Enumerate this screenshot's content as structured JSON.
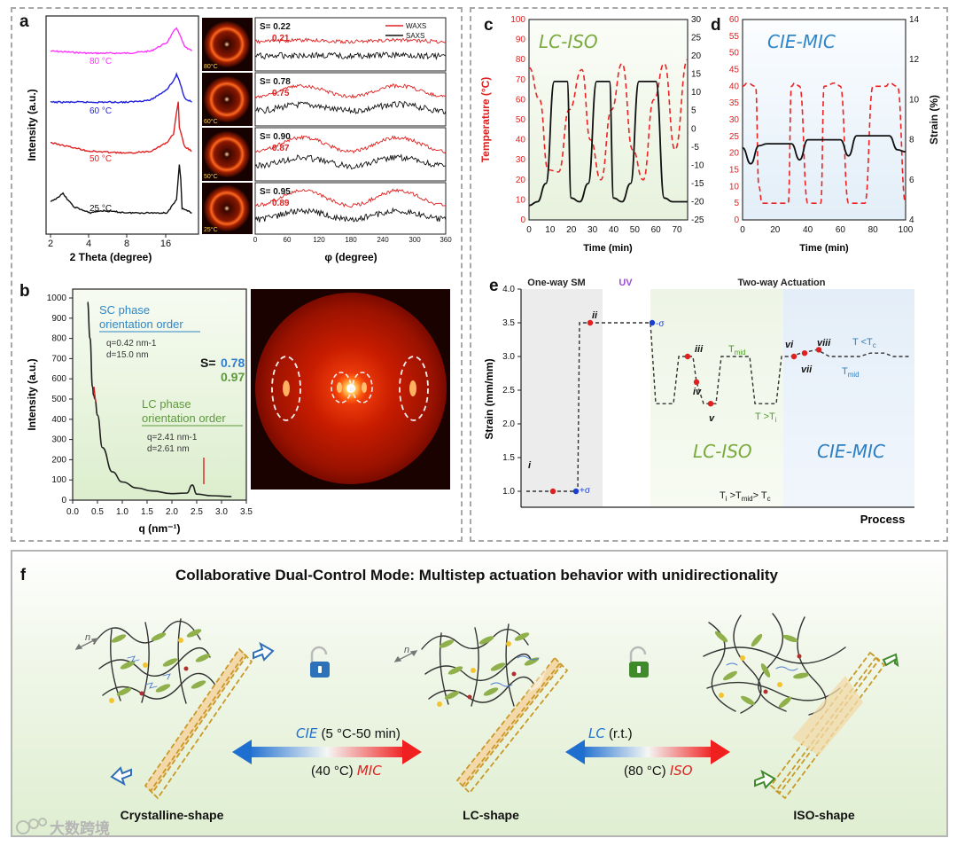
{
  "panel_a": {
    "letter": "a",
    "ylabel": "Intensity (a.u.)",
    "xlabel": "2 Theta (degree)",
    "xticks": [
      "2",
      "4",
      "8",
      "16"
    ],
    "curves": [
      {
        "label": "80 °C",
        "color": "#ff33ff"
      },
      {
        "label": "60 °C",
        "color": "#1f1fdd"
      },
      {
        "label": "50 °C",
        "color": "#e02020"
      },
      {
        "label": "25 °C",
        "color": "#111111"
      }
    ],
    "pattern_labels": [
      "80°C",
      "60°C",
      "50°C",
      "25°C"
    ],
    "legend": [
      "WAXS",
      "SAXS"
    ],
    "s_values": [
      {
        "black": "S= 0.22",
        "red": "0.21"
      },
      {
        "black": "S= 0.78",
        "red": "0.75"
      },
      {
        "black": "S= 0.90",
        "red": "0.87"
      },
      {
        "black": "S= 0.95",
        "red": "0.89"
      }
    ],
    "phi_label": "φ (degree)",
    "phi_ticks": [
      "0",
      "60",
      "120",
      "180",
      "240",
      "300",
      "360"
    ]
  },
  "panel_b": {
    "letter": "b",
    "ylabel": "Intensity (a.u.)",
    "xlabel": "q (nm⁻¹)",
    "sc_title_1": "SC phase",
    "sc_title_2": "orientation order",
    "sc_q": "q=0.42 nm-1",
    "sc_d": "d=15.0 nm",
    "s_label": "S=",
    "s_sc": "0.78",
    "s_lc": "0.97",
    "lc_title_1": "LC phase",
    "lc_title_2": "orientation order",
    "lc_q": "q=2.41 nm-1",
    "lc_d": "d=2.61 nm"
  },
  "panel_c": {
    "letter": "c",
    "mode": "LC-ISO",
    "ylabel_left": "Temperature (°C)",
    "xlabel": "Time (min)"
  },
  "panel_d": {
    "letter": "d",
    "mode": "CIE-MIC",
    "ylabel_right": "Strain (%)",
    "xlabel": "Time (min)"
  },
  "panel_e": {
    "letter": "e",
    "ylabel": "Strain (mm/mm)",
    "xlabel": "Process",
    "seg_oneway": "One-way SM",
    "seg_uv": "UV",
    "seg_twoway": "Two-way Actuation",
    "points": [
      "i",
      "ii",
      "iii",
      "iv",
      "v",
      "vi",
      "vii",
      "viii"
    ],
    "plus_sigma": "+σ",
    "minus_sigma": "-σ",
    "t_mid": "T",
    "t_mid_sub": "mid",
    "t_gt_ti": "T >T",
    "t_gt_ti_sub": "i",
    "t_lt_tc": "T <T",
    "t_lt_tc_sub": "c",
    "region_lc": "LC-ISO",
    "region_cie": "CIE-MIC",
    "order_text_1": "T",
    "order_text_2": "i",
    "order_text_3": " >T",
    "order_text_4": "mid",
    "order_text_5": "> T",
    "order_text_6": "c"
  },
  "panel_f": {
    "letter": "f",
    "title": "Collaborative Dual-Control Mode: Multistep actuation behavior with unidirectionality",
    "arrow1_top_italic": "CIE",
    "arrow1_top": " (5 °C-50 min)",
    "arrow1_bottom": "(40 °C) ",
    "arrow1_bottom_italic": "MIC",
    "arrow2_top_italic": "LC",
    "arrow2_top": " (r.t.)",
    "arrow2_bottom": "(80 °C) ",
    "arrow2_bottom_italic": "ISO",
    "shape1": "Crystalline-shape",
    "shape2": "LC-shape",
    "shape3": "ISO-shape",
    "n_label": "n",
    "watermark": "大数跨境"
  },
  "chart_data": [
    {
      "type": "line",
      "panel": "a-left",
      "xlabel": "2 Theta (degree)",
      "ylabel": "Intensity (a.u.)",
      "x_scale": "log",
      "xlim": [
        2,
        26
      ],
      "series": [
        {
          "name": "80 °C",
          "x": [
            2,
            4,
            8,
            12,
            16,
            18,
            19,
            20,
            22,
            25
          ],
          "y": [
            0.86,
            0.85,
            0.85,
            0.86,
            0.9,
            0.95,
            0.97,
            0.94,
            0.88,
            0.86
          ]
        },
        {
          "name": "60 °C",
          "x": [
            2,
            4,
            8,
            12,
            16,
            18,
            19,
            20,
            22,
            25
          ],
          "y": [
            0.62,
            0.62,
            0.62,
            0.63,
            0.68,
            0.72,
            0.75,
            0.72,
            0.64,
            0.62
          ]
        },
        {
          "name": "50 °C",
          "x": [
            2,
            4,
            8,
            12,
            16,
            18,
            19,
            19.6,
            20,
            22,
            25
          ],
          "y": [
            0.43,
            0.39,
            0.38,
            0.39,
            0.43,
            0.47,
            0.57,
            0.62,
            0.5,
            0.41,
            0.39
          ]
        },
        {
          "name": "25 °C",
          "x": [
            2,
            2.5,
            3,
            4,
            5,
            8,
            16,
            19,
            20,
            20.5,
            21,
            25
          ],
          "y": [
            0.15,
            0.19,
            0.13,
            0.1,
            0.11,
            0.1,
            0.1,
            0.16,
            0.33,
            0.26,
            0.12,
            0.1
          ]
        }
      ]
    },
    {
      "type": "line",
      "panel": "a-right",
      "xlabel": "φ (degree)",
      "xlim": [
        0,
        360
      ],
      "legend": [
        "WAXS",
        "SAXS"
      ],
      "series": [
        {
          "name": "WAXS",
          "peaks_at": [
            90,
            270
          ]
        },
        {
          "name": "SAXS",
          "peaks_at": [
            90,
            270
          ]
        }
      ],
      "s_values_saxs": [
        0.22,
        0.78,
        0.9,
        0.95
      ],
      "s_values_waxs": [
        0.21,
        0.75,
        0.87,
        0.89
      ]
    },
    {
      "type": "line",
      "panel": "b",
      "xlabel": "q (nm⁻¹)",
      "ylabel": "Intensity (a.u.)",
      "xlim": [
        0,
        3.5
      ],
      "ylim": [
        0,
        1000
      ],
      "xticks": [
        0.0,
        0.5,
        1.0,
        1.5,
        2.0,
        2.5,
        3.0,
        3.5
      ],
      "yticks": [
        0,
        100,
        200,
        300,
        400,
        500,
        600,
        700,
        800,
        900,
        1000
      ],
      "series": [
        {
          "name": "",
          "x": [
            0.3,
            0.35,
            0.4,
            0.42,
            0.45,
            0.5,
            0.6,
            0.8,
            1.0,
            1.3,
            1.6,
            2.0,
            2.3,
            2.41,
            2.5,
            2.8,
            3.2
          ],
          "y": [
            980,
            800,
            560,
            520,
            500,
            420,
            260,
            140,
            90,
            60,
            45,
            32,
            35,
            75,
            30,
            22,
            18
          ]
        }
      ]
    },
    {
      "type": "line",
      "panel": "c",
      "xlabel": "Time (min)",
      "ylabel": "Temperature (°C)",
      "ylabel_right": "",
      "xlim": [
        0,
        75
      ],
      "ylim": [
        0,
        100
      ],
      "ylim_right": [
        -25,
        30
      ],
      "xticks": [
        0,
        10,
        20,
        30,
        40,
        50,
        60,
        70
      ],
      "yticks": [
        0,
        10,
        20,
        30,
        40,
        50,
        60,
        70,
        80,
        90,
        100
      ],
      "yticks_right": [
        -25,
        -20,
        -15,
        -10,
        -5,
        0,
        5,
        10,
        15,
        20,
        25,
        30
      ],
      "series": [
        {
          "name": "Temperature",
          "axis": "left",
          "style": "dashed",
          "color": "#ee2222",
          "x": [
            0,
            5,
            9,
            14,
            19,
            25,
            29,
            34,
            39,
            44,
            49,
            54,
            59,
            64,
            69,
            75
          ],
          "y": [
            76,
            60,
            25,
            24,
            55,
            75,
            40,
            20,
            55,
            78,
            35,
            20,
            60,
            78,
            35,
            80
          ]
        },
        {
          "name": "Strain",
          "axis": "right",
          "color": "#111111",
          "x": [
            0,
            4,
            8,
            12,
            18,
            20,
            24,
            28,
            32,
            38,
            40,
            44,
            48,
            52,
            56,
            60,
            64,
            68,
            72,
            75
          ],
          "y": [
            -21,
            -20,
            -15,
            13,
            13,
            -19,
            -20,
            -15,
            13,
            13,
            -19,
            -20,
            -15,
            13,
            13,
            13,
            -19,
            -20,
            -20,
            -20
          ]
        }
      ]
    },
    {
      "type": "line",
      "panel": "d",
      "xlabel": "Time (min)",
      "ylabel": "",
      "ylabel_right": "Strain (%)",
      "xlim": [
        0,
        100
      ],
      "ylim": [
        0,
        60
      ],
      "ylim_right": [
        4,
        14
      ],
      "xticks": [
        0,
        20,
        40,
        60,
        80,
        100
      ],
      "yticks": [
        0,
        5,
        10,
        15,
        20,
        25,
        30,
        35,
        40,
        45,
        50,
        55,
        60
      ],
      "yticks_right": [
        4,
        6,
        8,
        10,
        12,
        14
      ],
      "series": [
        {
          "name": "Temperature",
          "axis": "left",
          "style": "dashed",
          "color": "#ee2222",
          "x": [
            0,
            3,
            8,
            10,
            12,
            15,
            28,
            30,
            32,
            35,
            40,
            45,
            48,
            50,
            57,
            60,
            65,
            70,
            75,
            80,
            88,
            90,
            95,
            100
          ],
          "y": [
            40,
            41,
            40,
            10,
            5,
            5,
            5,
            40,
            41,
            40,
            5,
            5,
            5,
            40,
            41,
            40,
            5,
            5,
            5,
            40,
            40,
            41,
            40,
            5
          ]
        },
        {
          "name": "Strain",
          "axis": "right",
          "color": "#111111",
          "x": [
            0,
            5,
            10,
            15,
            30,
            35,
            40,
            45,
            60,
            65,
            70,
            75,
            90,
            95,
            100
          ],
          "y": [
            7.6,
            6.8,
            7.7,
            7.8,
            7.8,
            7.0,
            8.0,
            8.0,
            8.0,
            7.2,
            8.2,
            8.2,
            8.2,
            7.5,
            7.4
          ]
        }
      ]
    },
    {
      "type": "line",
      "panel": "e",
      "xlabel": "Process",
      "ylabel": "Strain (mm/mm)",
      "ylim": [
        1.0,
        4.0
      ],
      "yticks": [
        1.0,
        1.5,
        2.0,
        2.5,
        3.0,
        3.5,
        4.0
      ],
      "points": [
        {
          "label": "i",
          "y": 1.0
        },
        {
          "label": "ii",
          "y": 3.5
        },
        {
          "label": "iii",
          "y": 3.0
        },
        {
          "label": "iv",
          "y": 2.62
        },
        {
          "label": "v",
          "y": 2.3
        },
        {
          "label": "vi",
          "y": 3.0
        },
        {
          "label": "vii",
          "y": 3.05
        },
        {
          "label": "viii",
          "y": 3.1
        }
      ]
    }
  ]
}
